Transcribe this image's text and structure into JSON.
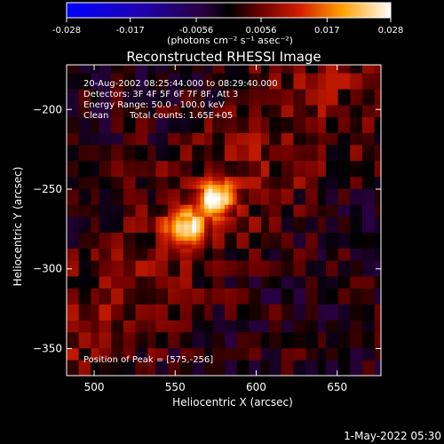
{
  "colorbar": {
    "ticks": [
      "-0.028",
      "-0.017",
      "-0.0056",
      "0.0056",
      "0.017",
      "0.028"
    ],
    "unit_label": "(photons cm⁻² s⁻¹ asec⁻²)",
    "range": [
      -0.028,
      0.028
    ]
  },
  "title": "Reconstructed RHESSI Image",
  "annotations": {
    "time_range": "20-Aug-2002 08:25:44.000 to 08:29:40.000",
    "detectors": "Detectors: 3F 4F 5F 6F 7F 8F, Att 3",
    "energy": "Energy Range: 50.0 - 100.0 keV",
    "clean": "Clean",
    "counts": "Total counts: 1.65E+05",
    "peak": "Position of Peak = [575,-256]"
  },
  "footer_timestamp": "1-May-2022 05:30",
  "chart_data": {
    "type": "heatmap",
    "title": "Reconstructed RHESSI Image",
    "xlabel": "Heliocentric X (arcsec)",
    "ylabel": "Heliocentric Y (arcsec)",
    "xlim": [
      483,
      677
    ],
    "ylim": [
      -367,
      -172
    ],
    "xticks": [
      500,
      550,
      600,
      650
    ],
    "yticks": [
      -200,
      -250,
      -300,
      -350
    ],
    "colormap": "RHESSI red-temperature with blue/purple negatives",
    "value_range": [
      -0.028,
      0.028
    ],
    "sources": [
      {
        "x": 575,
        "y": -256,
        "peak": 0.028
      },
      {
        "x": 557,
        "y": -274,
        "peak": 0.024
      }
    ],
    "peak_position": [
      575,
      -256
    ]
  }
}
